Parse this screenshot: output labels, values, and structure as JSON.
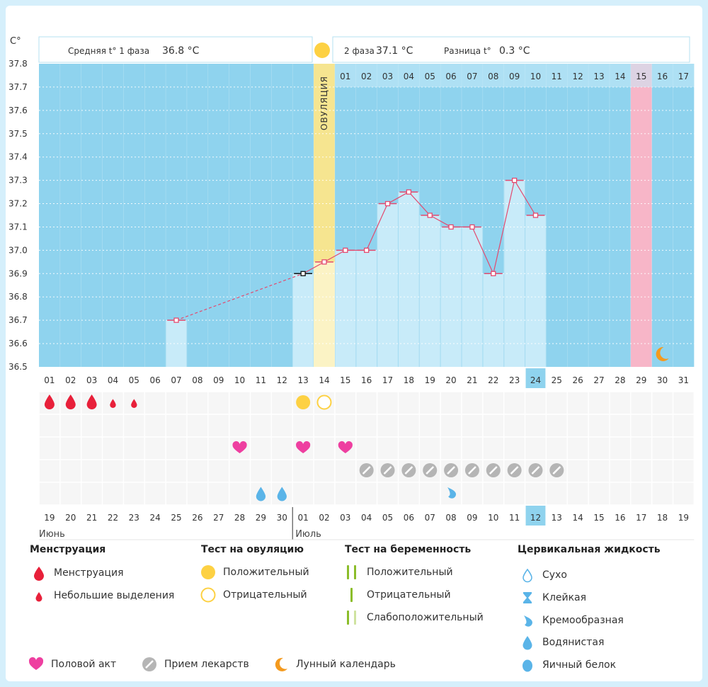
{
  "axis_unit": "C°",
  "header": {
    "phase1_label": "Средняя t° 1 фаза",
    "phase1_value": "36.8 °C",
    "phase2_label": "2 фаза",
    "phase2_value": "37.1 °C",
    "diff_label": "Разница t°",
    "diff_value": "0.3 °C"
  },
  "ovulation_label": "ОВУЛЯЦИЯ",
  "chart_data": {
    "type": "line",
    "title": "",
    "ylim": [
      36.5,
      37.8
    ],
    "yticks": [
      "37.8",
      "37.7",
      "37.6",
      "37.5",
      "37.4",
      "37.3",
      "37.2",
      "37.1",
      "37.0",
      "36.9",
      "36.8",
      "36.7",
      "36.6",
      "36.5"
    ],
    "days": [
      "01",
      "02",
      "03",
      "04",
      "05",
      "06",
      "07",
      "08",
      "09",
      "10",
      "11",
      "12",
      "13",
      "14",
      "15",
      "16",
      "17",
      "18",
      "19",
      "20",
      "21",
      "22",
      "23",
      "24",
      "25",
      "26",
      "27",
      "28",
      "29",
      "30",
      "31"
    ],
    "phase2_days": [
      "01",
      "02",
      "03",
      "04",
      "05",
      "06",
      "07",
      "08",
      "09",
      "10",
      "11",
      "12",
      "13",
      "14",
      "15",
      "16",
      "17"
    ],
    "phase2_start_index": 14,
    "ovulation_index": 13,
    "highlight_index": 28,
    "current_index": 23,
    "temperatures": [
      null,
      null,
      null,
      null,
      null,
      null,
      36.7,
      null,
      null,
      null,
      null,
      null,
      36.9,
      36.95,
      37.0,
      37.0,
      37.2,
      37.25,
      37.15,
      37.1,
      37.1,
      36.9,
      37.3,
      37.15,
      null,
      null,
      null,
      null,
      null,
      null,
      null
    ],
    "dates": [
      "19",
      "20",
      "21",
      "22",
      "23",
      "24",
      "25",
      "26",
      "27",
      "28",
      "29",
      "30",
      "01",
      "02",
      "03",
      "04",
      "05",
      "06",
      "07",
      "08",
      "09",
      "10",
      "11",
      "12",
      "13",
      "14",
      "15",
      "16",
      "17",
      "18",
      "19"
    ],
    "red_dates": [
      0,
      1,
      5,
      6,
      14,
      15,
      21,
      22,
      28,
      29
    ],
    "month1": "Июнь",
    "month2": "Июль"
  },
  "events": {
    "menstruation": [
      0,
      1,
      2
    ],
    "spotting": [
      3,
      4
    ],
    "ovulation_positive": [
      12
    ],
    "ovulation_negative": [
      13
    ],
    "intercourse": [
      9,
      12,
      14
    ],
    "medication": [
      15,
      16,
      17,
      18,
      19,
      20,
      21,
      22,
      23,
      24
    ],
    "fluid_watery": [
      10,
      11
    ],
    "fluid_creamy": [
      19
    ],
    "lunar": [
      29
    ]
  },
  "legend": {
    "menstruation_title": "Менструация",
    "menstruation_item": "Менструация",
    "spotting_item": "Небольшие выделения",
    "ovtest_title": "Тест на овуляцию",
    "ovtest_positive": "Положительный",
    "ovtest_negative": "Отрицательный",
    "pregtest_title": "Тест на беременность",
    "pregtest_positive": "Положительный",
    "pregtest_negative": "Отрицательный",
    "pregtest_weak": "Слабоположительный",
    "fluid_title": "Цервикальная жидкость",
    "fluid_dry": "Сухо",
    "fluid_sticky": "Клейкая",
    "fluid_creamy": "Кремообразная",
    "fluid_watery": "Водянистая",
    "fluid_eggwhite": "Яичный белок",
    "intercourse": "Половой акт",
    "medication": "Прием лекарств",
    "lunar": "Лунный календарь"
  },
  "colors": {
    "sky": "#8fd3ee",
    "bar": "#c8ebf9",
    "ovulation": "#fce68a",
    "highlight": "#f7b6c8",
    "line": "#e34a6f",
    "drop_red": "#e8203a",
    "heart": "#ee3fa0",
    "sun": "#fdd143",
    "pill": "#b5b5b5",
    "water": "#5ab4e8",
    "moon": "#f49a1e",
    "green": "#8bbd2a"
  }
}
